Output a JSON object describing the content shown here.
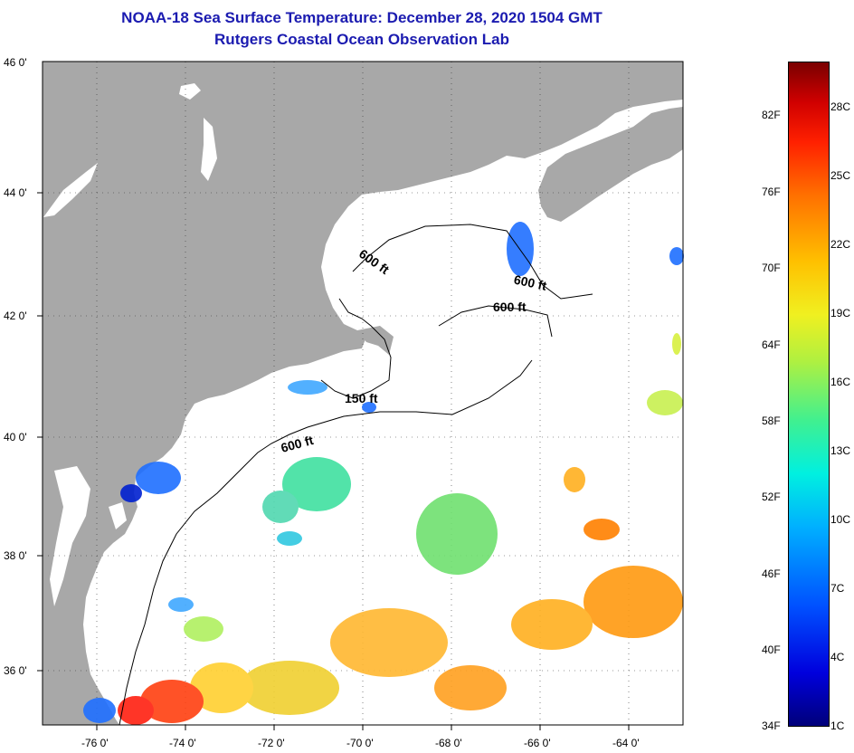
{
  "title": {
    "line1": "NOAA-18 Sea Surface Temperature:  December 28, 2020 1504 GMT",
    "line2": "Rutgers Coastal Ocean Observation Lab"
  },
  "map": {
    "lat_labels": [
      "46 0'",
      "44 0'",
      "42 0'",
      "40 0'",
      "38 0'",
      "36 0'"
    ],
    "lon_labels": [
      "-76 0'",
      "-74 0'",
      "-72 0'",
      "-70 0'",
      "-68 0'",
      "-66 0'",
      "-64 0'"
    ],
    "isobaths": [
      "600 ft",
      "600 ft",
      "600 ft",
      "150 ft",
      "600 ft"
    ],
    "colors": {
      "land": "#a8a8a8",
      "water": "#ffffff"
    }
  },
  "colorbar": {
    "fahrenheit": [
      "82F",
      "76F",
      "70F",
      "64F",
      "58F",
      "52F",
      "46F",
      "40F",
      "34F"
    ],
    "celsius": [
      "28C",
      "25C",
      "22C",
      "19C",
      "16C",
      "13C",
      "10C",
      "7C",
      "4C",
      "1C"
    ]
  }
}
